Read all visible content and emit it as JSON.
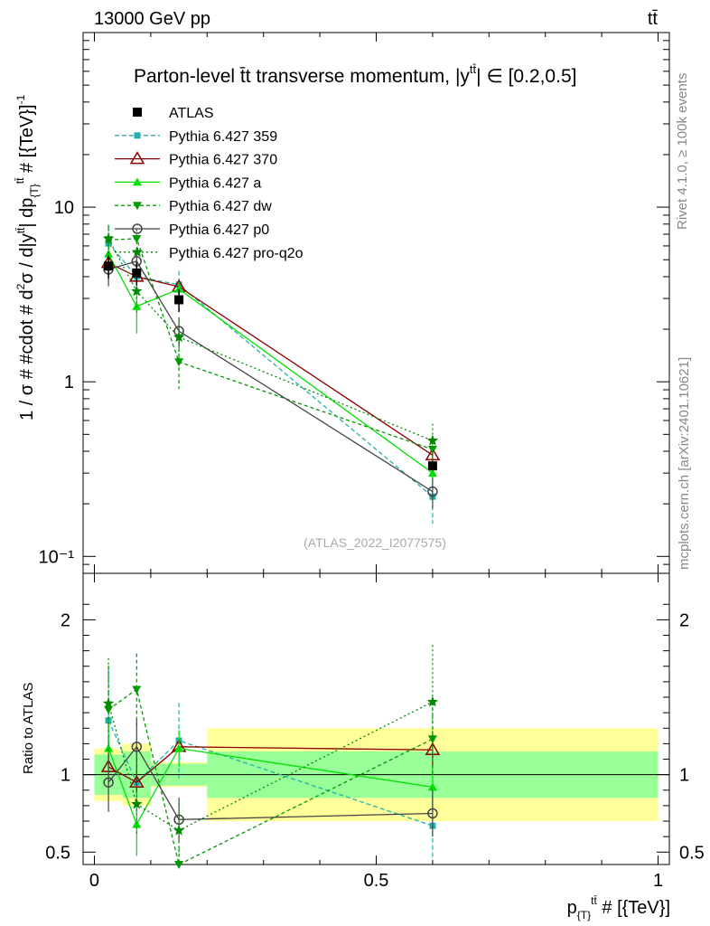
{
  "header": {
    "energy_label": "13000 GeV pp",
    "process_label": "tt̄",
    "side_rivet": "Rivet 4.1.0, ≥ 100k events",
    "side_mcplots": "mcplots.cern.ch [arXiv:2401.10621]",
    "watermark": "(ATLAS_2022_I2077575)"
  },
  "chart_data": {
    "type": "line",
    "title": "Parton-level t̄t transverse momentum, |y^{tt̄}| ∈ [0.2,0.5]",
    "title_main": "Parton-level t̄t transverse momentum, |y",
    "title_sup": "tt̄",
    "title_tail": "| ∈ [0.2,0.5]",
    "ylabel": "1 / σ # #cdot # d²σ / d|y^{tt̄}| dp_{T}^{tt̄} # [{TeV}]^-1",
    "ylabel_parts": {
      "a": "1 / σ # #cdot # d",
      "b": "2",
      "c": "σ / d|y",
      "d": "tt̄",
      "e": "| dp",
      "f": "{T}",
      "g": "tt̄",
      "h": " # [{TeV}]",
      "i": "-1"
    },
    "xlabel_parts": {
      "a": "p",
      "b": "{T}",
      "c": "tt̄",
      "d": " # [{TeV}]"
    },
    "ratio_ylabel": "Ratio to ATLAS",
    "xlim": [
      -0.02,
      1.02
    ],
    "ylim_log": [
      0.08,
      100
    ],
    "ratio_ylim": [
      0.42,
      2.3
    ],
    "x_ticks": [
      "0",
      "0.5",
      "1"
    ],
    "x_tick_values": [
      0,
      0.5,
      1
    ],
    "y_ticks": [
      "10⁻¹",
      "1",
      "10"
    ],
    "y_tick_values": [
      0.1,
      1,
      10
    ],
    "ratio_ticks": [
      "0.5",
      "1",
      "2"
    ],
    "ratio_tick_values": [
      0.5,
      1,
      2
    ],
    "data": {
      "name": "ATLAS",
      "x": [
        0.025,
        0.075,
        0.15,
        0.6
      ],
      "xerr": [
        0.025,
        0.025,
        0.05,
        0.4
      ],
      "y": [
        4.6,
        4.2,
        2.95,
        0.33
      ],
      "yerr": [
        0.15,
        0.15,
        0.15,
        0.02
      ],
      "band_inner": [
        0.13,
        0.15,
        0.07,
        0.15
      ],
      "band_outer": [
        0.17,
        0.2,
        0.08,
        0.3
      ]
    },
    "series": [
      {
        "name": "Pythia 6.427 359",
        "color": "#20B2AA",
        "marker": "square",
        "dash": "5,3",
        "x": [
          0.025,
          0.075,
          0.15,
          0.6
        ],
        "y": [
          6.2,
          4.0,
          3.6,
          0.22
        ],
        "err": [
          0.25,
          0.22,
          0.2,
          0.3
        ],
        "ratio": [
          1.35,
          0.95,
          1.22,
          0.67
        ]
      },
      {
        "name": "Pythia 6.427 370",
        "color": "#8B0000",
        "marker": "triangle-open",
        "dash": "",
        "x": [
          0.025,
          0.075,
          0.15,
          0.6
        ],
        "y": [
          4.8,
          4.0,
          3.5,
          0.38
        ],
        "err": [
          0.1,
          0.08,
          0.05,
          0.1
        ],
        "ratio": [
          1.05,
          0.95,
          1.18,
          1.16
        ]
      },
      {
        "name": "Pythia 6.427 a",
        "color": "#00E000",
        "marker": "triangle",
        "dash": "",
        "x": [
          0.025,
          0.075,
          0.15,
          0.6
        ],
        "y": [
          5.4,
          2.7,
          3.4,
          0.3
        ],
        "err": [
          0.15,
          0.3,
          0.1,
          0.15
        ],
        "ratio": [
          1.17,
          0.68,
          1.17,
          0.92
        ]
      },
      {
        "name": "Pythia 6.427 dw",
        "color": "#009900",
        "marker": "triangle-down",
        "dash": "4,3",
        "x": [
          0.025,
          0.075,
          0.15,
          0.6
        ],
        "y": [
          6.5,
          6.6,
          1.3,
          0.41
        ],
        "err": [
          0.2,
          0.15,
          0.3,
          0.2
        ],
        "ratio": [
          1.42,
          1.55,
          0.41,
          1.23
        ]
      },
      {
        "name": "Pythia 6.427 p0",
        "color": "#444444",
        "marker": "circle-open",
        "dash": "",
        "x": [
          0.025,
          0.075,
          0.15,
          0.6
        ],
        "y": [
          4.4,
          4.9,
          1.95,
          0.235
        ],
        "err": [
          0.2,
          0.15,
          0.2,
          0.2
        ],
        "ratio": [
          0.95,
          1.18,
          0.71,
          0.75
        ]
      },
      {
        "name": "Pythia 6.427 pro-q2o",
        "color": "#008800",
        "marker": "star",
        "dash": "2,3",
        "x": [
          0.025,
          0.075,
          0.15,
          0.6
        ],
        "y": [
          6.6,
          3.3,
          1.8,
          0.46
        ],
        "err": [
          0.2,
          0.25,
          0.3,
          0.25
        ],
        "ratio": [
          1.46,
          0.81,
          0.64,
          1.47
        ]
      }
    ]
  }
}
